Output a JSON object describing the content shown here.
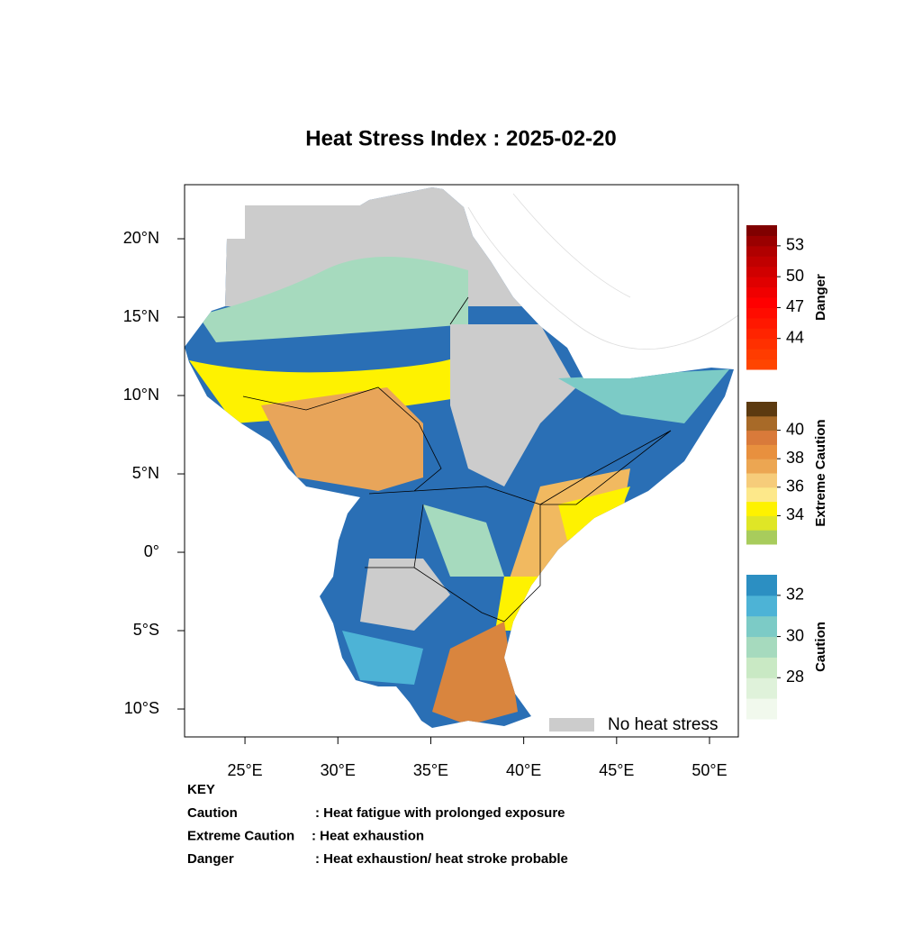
{
  "title": "Heat Stress Index : 2025-02-20",
  "map": {
    "xlim": [
      21.75,
      51.55
    ],
    "ylim": [
      -11.78,
      23.45
    ],
    "xticks": [
      {
        "value": 25,
        "label": "25°E"
      },
      {
        "value": 30,
        "label": "30°E"
      },
      {
        "value": 35,
        "label": "35°E"
      },
      {
        "value": 40,
        "label": "40°E"
      },
      {
        "value": 45,
        "label": "45°E"
      },
      {
        "value": 50,
        "label": "50°E"
      }
    ],
    "yticks": [
      {
        "value": 20,
        "label": "20°N"
      },
      {
        "value": 15,
        "label": "15°N"
      },
      {
        "value": 10,
        "label": "10°N"
      },
      {
        "value": 5,
        "label": "5°N"
      },
      {
        "value": 0,
        "label": "0°"
      },
      {
        "value": -5,
        "label": "5°S"
      },
      {
        "value": -10,
        "label": "10°S"
      }
    ],
    "legend": {
      "label": "No heat stress",
      "color": "#cccccc"
    }
  },
  "colorbars": [
    {
      "name": "Danger",
      "lim": [
        41,
        55
      ],
      "ticks": [
        44,
        47,
        50,
        53
      ],
      "colors": [
        "#ff4500",
        "#ff3c00",
        "#ff3000",
        "#ff2400",
        "#ff1800",
        "#ff0c00",
        "#ff0000",
        "#f00000",
        "#e00000",
        "#d00000",
        "#c00000",
        "#b00000",
        "#9a0000",
        "#800000"
      ]
    },
    {
      "name": "Extreme Caution",
      "lim": [
        32,
        42
      ],
      "ticks": [
        34,
        36,
        38,
        40
      ],
      "colors": [
        "#a8cc5c",
        "#dfe626",
        "#fef200",
        "#fde88a",
        "#f6cc7a",
        "#eca652",
        "#e8903e",
        "#d97a3a",
        "#a86a28",
        "#5c3a10"
      ]
    },
    {
      "name": "Caution",
      "lim": [
        26,
        33
      ],
      "ticks": [
        28,
        30,
        32
      ],
      "colors": [
        "#f1f9ed",
        "#dff2da",
        "#c9e9c4",
        "#a6dabe",
        "#7ccbc6",
        "#4db3d6",
        "#2c8fc2"
      ]
    }
  ],
  "key": {
    "title": "KEY",
    "rows": [
      [
        "Caution",
        ": Heat fatigue with prolonged exposure"
      ],
      [
        "Extreme Caution",
        " : Heat exhaustion"
      ],
      [
        "Danger",
        ": Heat exhaustion/ heat stroke probable"
      ]
    ]
  }
}
